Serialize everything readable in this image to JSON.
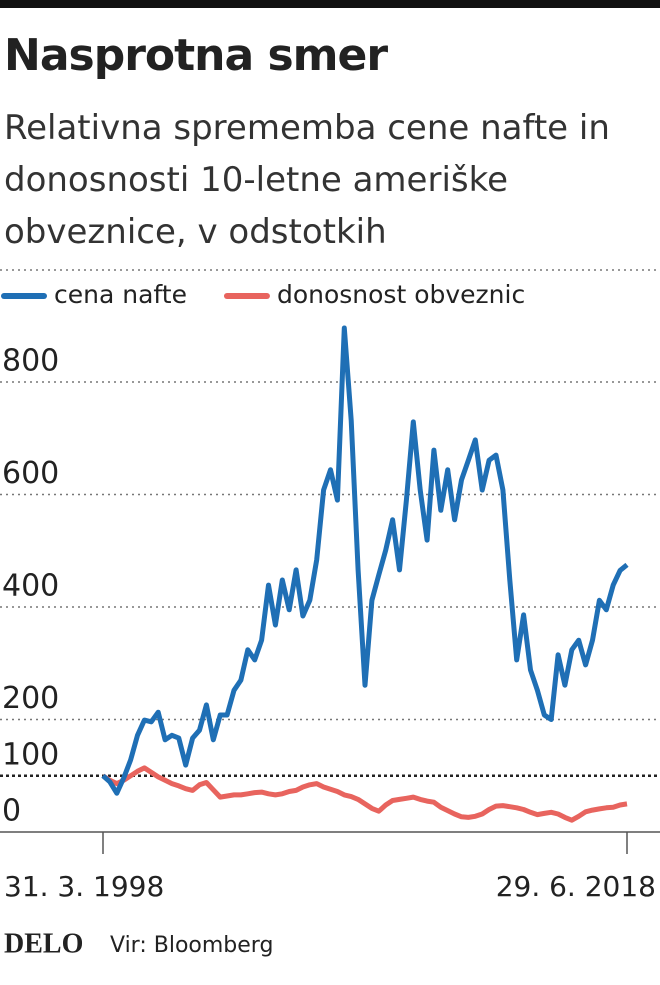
{
  "chart_data": {
    "type": "line",
    "title": "Nasprotna smer",
    "subtitle": "Relativna sprememba cene nafte in donosnosti 10-letne ameriške obveznice, v odstotkih",
    "categories": [
      "31. 3. 1998",
      null,
      null,
      null,
      null,
      null,
      null,
      null,
      null,
      null,
      null,
      null,
      null,
      null,
      null,
      null,
      null,
      null,
      null,
      null,
      null,
      null,
      null,
      null,
      null,
      null,
      null,
      null,
      null,
      null,
      null,
      null,
      null,
      null,
      null,
      null,
      null,
      null,
      null,
      null,
      null,
      null,
      null,
      null,
      null,
      null,
      null,
      null,
      null,
      null,
      null,
      null,
      null,
      null,
      null,
      null,
      null,
      null,
      null,
      null,
      null,
      null,
      null,
      null,
      null,
      null,
      null,
      null,
      null,
      null,
      null,
      null,
      null,
      null,
      null,
      null,
      "29. 6. 2018"
    ],
    "series": [
      {
        "name": "cena nafte",
        "color": "#1f6fb5",
        "values": [
          100,
          89,
          69,
          96,
          128,
          172,
          199,
          196,
          213,
          164,
          172,
          167,
          119,
          167,
          181,
          226,
          164,
          208,
          208,
          252,
          270,
          324,
          306,
          341,
          439,
          368,
          448,
          395,
          466,
          384,
          412,
          484,
          608,
          644,
          590,
          896,
          732,
          466,
          261,
          412,
          457,
          501,
          555,
          466,
          590,
          729,
          608,
          519,
          679,
          572,
          644,
          555,
          626,
          661,
          697,
          608,
          661,
          670,
          608,
          448,
          306,
          386,
          288,
          252,
          208,
          200,
          315,
          261,
          324,
          341,
          297,
          341,
          412,
          395,
          439,
          465,
          475
        ]
      },
      {
        "name": "donosnost obveznic",
        "color": "#e8645e",
        "values": [
          100,
          92,
          86,
          92,
          100,
          108,
          114,
          106,
          98,
          92,
          86,
          82,
          77,
          74,
          84,
          88,
          75,
          62,
          64,
          66,
          66,
          68,
          70,
          71,
          68,
          66,
          68,
          72,
          74,
          80,
          84,
          86,
          80,
          76,
          72,
          66,
          63,
          58,
          50,
          42,
          37,
          48,
          56,
          58,
          60,
          62,
          58,
          55,
          53,
          44,
          38,
          32,
          27,
          26,
          28,
          32,
          40,
          46,
          47,
          45,
          43,
          40,
          35,
          31,
          33,
          35,
          32,
          26,
          21,
          28,
          36,
          39,
          41,
          43,
          44,
          48,
          50
        ]
      }
    ],
    "ylim": [
      0,
      1000
    ],
    "yticks": [
      0,
      100,
      200,
      400,
      600,
      800
    ],
    "reference_line": 100,
    "grid": true,
    "legend": "top-left",
    "brand": "DELO",
    "source": "Vir: Bloomberg"
  }
}
